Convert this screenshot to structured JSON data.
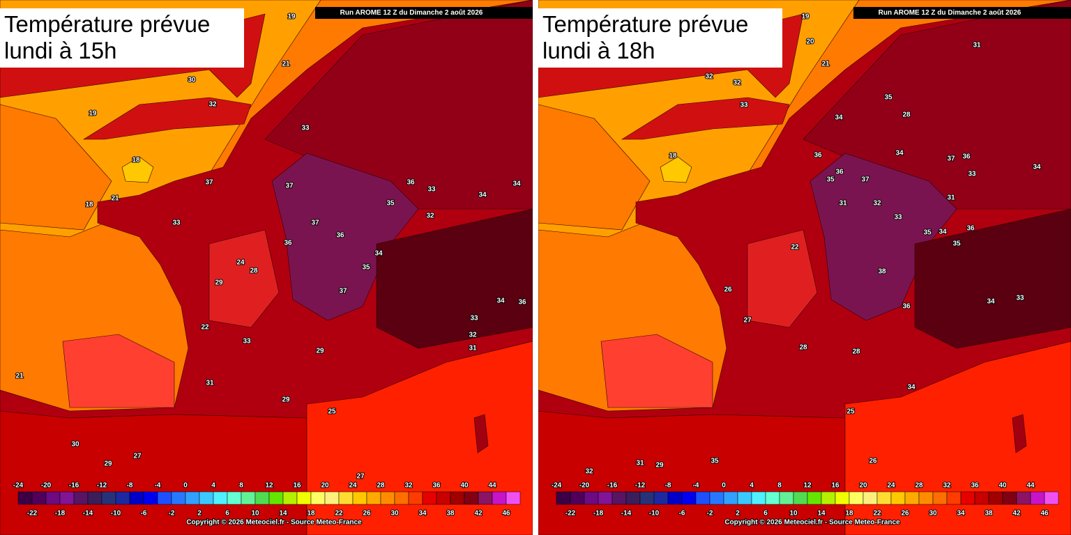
{
  "panels": [
    {
      "title_line1": "Température prévue",
      "title_line2": "lundi à 15h",
      "labels": [
        19,
        21,
        30,
        32,
        19,
        18,
        21,
        18,
        37,
        33,
        37,
        37,
        36,
        36,
        33,
        34,
        34,
        35,
        32,
        33,
        36,
        34,
        35,
        24,
        28,
        29,
        37,
        22,
        33,
        31,
        29,
        25,
        30,
        29,
        27,
        21,
        27,
        34,
        36,
        33,
        32,
        29,
        31
      ]
    },
    {
      "title_line1": "Température prévue",
      "title_line2": "lundi à 18h",
      "labels": [
        19,
        20,
        21,
        32,
        32,
        33,
        31,
        34,
        35,
        28,
        36,
        36,
        35,
        37,
        34,
        37,
        36,
        33,
        34,
        31,
        32,
        33,
        31,
        35,
        34,
        36,
        35,
        22,
        26,
        27,
        38,
        36,
        34,
        33,
        28,
        28,
        34,
        25,
        26,
        18,
        31,
        29,
        32,
        35
      ]
    }
  ],
  "run": "Run AROME 12 Z du Dimanche 2 août 2026",
  "copyright": "Copyright © 2026 Meteociel.fr - Source Meteo-France",
  "legend": {
    "top_labels": [
      -24,
      -20,
      -16,
      -12,
      -8,
      -4,
      0,
      4,
      8,
      12,
      16,
      20,
      24,
      28,
      32,
      36,
      40,
      44
    ],
    "bottom_labels": [
      -22,
      -18,
      -14,
      -10,
      -6,
      -2,
      2,
      6,
      10,
      14,
      18,
      22,
      26,
      30,
      34,
      38,
      42,
      46
    ],
    "colors": [
      "#3c0046",
      "#50005a",
      "#6e0a82",
      "#821496",
      "#5a1464",
      "#3c1e5a",
      "#283278",
      "#1e28a0",
      "#0000c8",
      "#0000f0",
      "#1e50ff",
      "#2878ff",
      "#32a0ff",
      "#3cc8ff",
      "#50f0ff",
      "#64ffd2",
      "#64f096",
      "#50dc50",
      "#64e600",
      "#b4f000",
      "#f0ff00",
      "#ffff64",
      "#fff07d",
      "#ffdc32",
      "#ffc800",
      "#ffaa00",
      "#ff8c00",
      "#ff6e00",
      "#ff3c00",
      "#e60000",
      "#c80000",
      "#a00000",
      "#820014",
      "#8c1464",
      "#c814c8",
      "#f050f0"
    ]
  }
}
